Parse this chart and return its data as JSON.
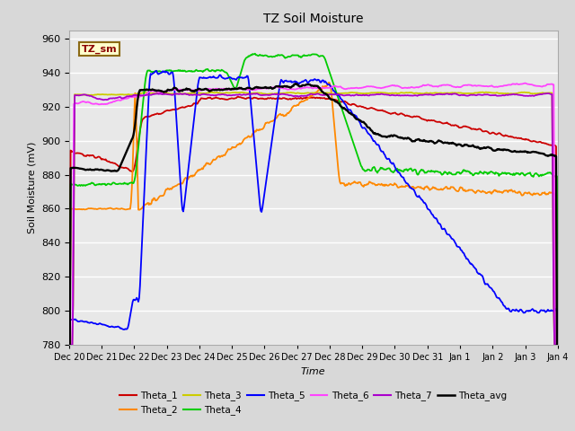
{
  "title": "TZ Soil Moisture",
  "xlabel": "Time",
  "ylabel": "Soil Moisture (mV)",
  "ylim": [
    780,
    965
  ],
  "yticks": [
    780,
    800,
    820,
    840,
    860,
    880,
    900,
    920,
    940,
    960
  ],
  "x_labels": [
    "Dec 20",
    "Dec 21",
    "Dec 22",
    "Dec 23",
    "Dec 24",
    "Dec 25",
    "Dec 26",
    "Dec 27",
    "Dec 28",
    "Dec 29",
    "Dec 30",
    "Dec 31",
    "Jan 1",
    "Jan 2",
    "Jan 3",
    "Jan 4"
  ],
  "legend_box_label": "TZ_sm",
  "legend_box_facecolor": "#ffffcc",
  "legend_box_edgecolor": "#8B6914",
  "colors": {
    "Theta_1": "#cc0000",
    "Theta_2": "#ff8800",
    "Theta_3": "#cccc00",
    "Theta_4": "#00cc00",
    "Theta_5": "#0000ff",
    "Theta_6": "#ff44ff",
    "Theta_7": "#aa00cc",
    "Theta_avg": "#000000"
  },
  "figsize": [
    6.4,
    4.8
  ],
  "dpi": 100
}
